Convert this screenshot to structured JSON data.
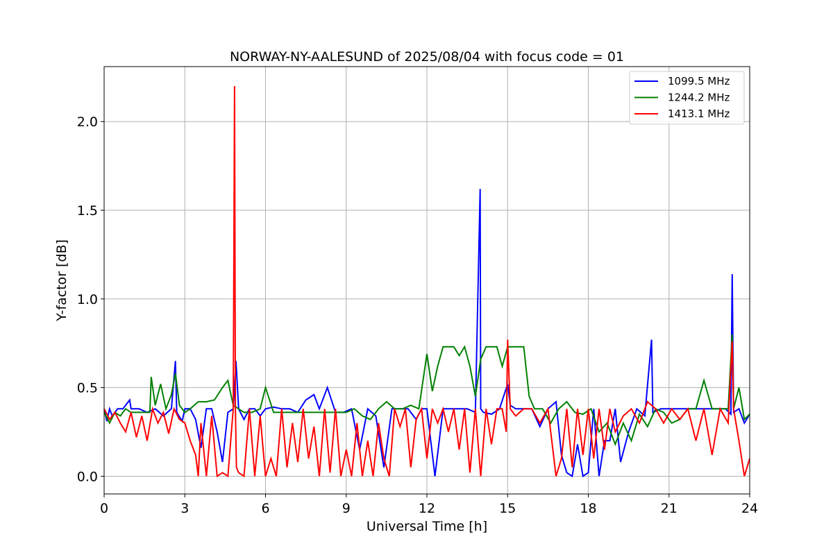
{
  "chart_data": {
    "type": "line",
    "title": "NORWAY-NY-AALESUND of 2025/08/04 with focus code = 01",
    "xlabel": "Universal Time [h]",
    "ylabel": "Y-factor [dB]",
    "xlim": [
      0,
      24
    ],
    "ylim": [
      -0.1,
      2.31
    ],
    "xticks": [
      0,
      3,
      6,
      9,
      12,
      15,
      18,
      21,
      24
    ],
    "xtick_labels": [
      "0",
      "3",
      "6",
      "9",
      "12",
      "15",
      "18",
      "21",
      "24"
    ],
    "yticks": [
      0.0,
      0.5,
      1.0,
      1.5,
      2.0
    ],
    "ytick_labels": [
      "0.0",
      "0.5",
      "1.0",
      "1.5",
      "2.0"
    ],
    "grid": true,
    "legend_position": "top-right",
    "series": [
      {
        "name": "1099.5 MHz",
        "color": "#0000ff",
        "x": [
          0.0,
          0.1,
          0.2,
          0.3,
          0.5,
          0.7,
          0.95,
          1.0,
          1.3,
          1.6,
          1.9,
          2.2,
          2.5,
          2.65,
          2.7,
          2.9,
          3.0,
          3.2,
          3.4,
          3.6,
          3.8,
          4.0,
          4.2,
          4.4,
          4.6,
          4.8,
          4.9,
          5.0,
          5.2,
          5.4,
          5.6,
          5.8,
          6.0,
          6.3,
          6.6,
          6.9,
          7.2,
          7.5,
          7.8,
          8.0,
          8.3,
          8.6,
          8.9,
          9.2,
          9.5,
          9.8,
          10.1,
          10.4,
          10.7,
          11.0,
          11.3,
          11.6,
          11.8,
          12.0,
          12.3,
          12.6,
          12.9,
          13.2,
          13.5,
          13.8,
          13.98,
          14.0,
          14.1,
          14.4,
          14.7,
          15.0,
          15.1,
          15.3,
          15.6,
          15.9,
          16.2,
          16.5,
          16.8,
          17.0,
          17.2,
          17.4,
          17.6,
          17.8,
          18.0,
          18.2,
          18.4,
          18.6,
          18.8,
          19.0,
          19.2,
          19.5,
          19.8,
          20.1,
          20.35,
          20.4,
          20.7,
          21.0,
          21.3,
          21.6,
          21.9,
          22.2,
          22.5,
          22.8,
          23.1,
          23.3,
          23.35,
          23.4,
          23.6,
          23.8,
          24.0
        ],
        "values": [
          0.38,
          0.31,
          0.38,
          0.34,
          0.38,
          0.38,
          0.43,
          0.38,
          0.38,
          0.36,
          0.38,
          0.34,
          0.38,
          0.65,
          0.36,
          0.31,
          0.38,
          0.38,
          0.32,
          0.16,
          0.38,
          0.38,
          0.25,
          0.08,
          0.36,
          0.38,
          0.65,
          0.38,
          0.32,
          0.38,
          0.38,
          0.34,
          0.38,
          0.39,
          0.38,
          0.38,
          0.36,
          0.43,
          0.46,
          0.38,
          0.5,
          0.36,
          0.36,
          0.38,
          0.15,
          0.38,
          0.34,
          0.05,
          0.38,
          0.38,
          0.38,
          0.32,
          0.38,
          0.38,
          0.0,
          0.38,
          0.38,
          0.38,
          0.38,
          0.36,
          1.62,
          0.38,
          0.36,
          0.35,
          0.38,
          0.52,
          0.4,
          0.38,
          0.38,
          0.38,
          0.28,
          0.38,
          0.42,
          0.12,
          0.02,
          0.0,
          0.18,
          0.0,
          0.02,
          0.38,
          0.0,
          0.2,
          0.2,
          0.38,
          0.08,
          0.25,
          0.38,
          0.34,
          0.77,
          0.36,
          0.38,
          0.38,
          0.38,
          0.38,
          0.38,
          0.38,
          0.38,
          0.38,
          0.38,
          0.35,
          1.14,
          0.36,
          0.38,
          0.3,
          0.35
        ]
      },
      {
        "name": "1244.2 MHz",
        "color": "#008000",
        "x": [
          0.0,
          0.2,
          0.4,
          0.6,
          0.8,
          1.0,
          1.2,
          1.5,
          1.7,
          1.75,
          1.9,
          2.1,
          2.3,
          2.5,
          2.65,
          2.8,
          3.0,
          3.2,
          3.5,
          3.8,
          4.1,
          4.4,
          4.6,
          4.8,
          5.0,
          5.2,
          5.5,
          5.8,
          6.0,
          6.3,
          6.6,
          6.9,
          7.2,
          7.5,
          7.8,
          8.1,
          8.4,
          8.7,
          9.0,
          9.3,
          9.6,
          9.9,
          10.2,
          10.5,
          10.8,
          11.1,
          11.4,
          11.7,
          12.0,
          12.2,
          12.4,
          12.6,
          12.8,
          13.0,
          13.2,
          13.4,
          13.6,
          13.8,
          14.0,
          14.2,
          14.4,
          14.6,
          14.8,
          15.0,
          15.2,
          15.4,
          15.6,
          15.8,
          16.0,
          16.3,
          16.6,
          16.9,
          17.2,
          17.5,
          17.8,
          18.1,
          18.4,
          18.7,
          19.0,
          19.3,
          19.6,
          19.9,
          20.2,
          20.5,
          20.8,
          21.1,
          21.4,
          21.7,
          22.0,
          22.3,
          22.6,
          22.9,
          23.2,
          23.35,
          23.4,
          23.6,
          23.8,
          24.0
        ],
        "values": [
          0.36,
          0.3,
          0.36,
          0.34,
          0.38,
          0.36,
          0.36,
          0.36,
          0.36,
          0.56,
          0.4,
          0.52,
          0.38,
          0.46,
          0.58,
          0.4,
          0.36,
          0.38,
          0.42,
          0.42,
          0.43,
          0.5,
          0.54,
          0.4,
          0.38,
          0.36,
          0.36,
          0.38,
          0.5,
          0.36,
          0.36,
          0.36,
          0.36,
          0.36,
          0.36,
          0.36,
          0.36,
          0.36,
          0.36,
          0.38,
          0.34,
          0.32,
          0.38,
          0.42,
          0.38,
          0.38,
          0.4,
          0.38,
          0.69,
          0.48,
          0.62,
          0.73,
          0.73,
          0.73,
          0.68,
          0.73,
          0.62,
          0.45,
          0.66,
          0.73,
          0.73,
          0.73,
          0.62,
          0.73,
          0.73,
          0.73,
          0.73,
          0.45,
          0.38,
          0.38,
          0.3,
          0.38,
          0.42,
          0.36,
          0.35,
          0.38,
          0.25,
          0.3,
          0.18,
          0.3,
          0.2,
          0.35,
          0.28,
          0.38,
          0.36,
          0.3,
          0.32,
          0.38,
          0.38,
          0.54,
          0.38,
          0.38,
          0.38,
          0.8,
          0.38,
          0.5,
          0.32,
          0.35
        ]
      },
      {
        "name": "1413.1 MHz",
        "color": "#ff0000",
        "x": [
          0.0,
          0.2,
          0.4,
          0.6,
          0.8,
          1.0,
          1.2,
          1.4,
          1.6,
          1.8,
          2.0,
          2.2,
          2.4,
          2.6,
          2.8,
          3.0,
          3.2,
          3.4,
          3.5,
          3.6,
          3.8,
          4.0,
          4.2,
          4.4,
          4.6,
          4.8,
          4.85,
          4.88,
          4.92,
          5.0,
          5.2,
          5.4,
          5.6,
          5.8,
          6.0,
          6.2,
          6.4,
          6.6,
          6.8,
          7.0,
          7.2,
          7.4,
          7.6,
          7.8,
          8.0,
          8.2,
          8.4,
          8.6,
          8.8,
          9.0,
          9.2,
          9.4,
          9.6,
          9.8,
          10.0,
          10.2,
          10.4,
          10.6,
          10.8,
          11.0,
          11.2,
          11.4,
          11.6,
          11.8,
          12.0,
          12.2,
          12.4,
          12.6,
          12.8,
          13.0,
          13.2,
          13.4,
          13.6,
          13.8,
          14.0,
          14.2,
          14.4,
          14.6,
          14.8,
          14.95,
          15.0,
          15.1,
          15.3,
          15.6,
          15.9,
          16.2,
          16.5,
          16.8,
          17.0,
          17.2,
          17.4,
          17.6,
          17.8,
          18.0,
          18.2,
          18.4,
          18.6,
          18.8,
          19.0,
          19.3,
          19.6,
          19.9,
          20.2,
          20.5,
          20.8,
          21.1,
          21.4,
          21.7,
          22.0,
          22.3,
          22.6,
          22.9,
          23.2,
          23.35,
          23.4,
          23.6,
          23.8,
          24.0
        ],
        "values": [
          0.38,
          0.32,
          0.36,
          0.3,
          0.25,
          0.36,
          0.22,
          0.34,
          0.2,
          0.38,
          0.3,
          0.36,
          0.24,
          0.38,
          0.32,
          0.3,
          0.2,
          0.12,
          0.0,
          0.3,
          0.0,
          0.34,
          0.0,
          0.02,
          0.0,
          0.38,
          2.2,
          0.38,
          0.05,
          0.02,
          0.0,
          0.38,
          0.0,
          0.34,
          0.0,
          0.1,
          0.0,
          0.38,
          0.05,
          0.3,
          0.08,
          0.38,
          0.1,
          0.28,
          0.0,
          0.38,
          0.02,
          0.38,
          0.0,
          0.15,
          0.0,
          0.3,
          0.0,
          0.2,
          0.0,
          0.3,
          0.1,
          0.0,
          0.38,
          0.28,
          0.38,
          0.05,
          0.32,
          0.38,
          0.1,
          0.38,
          0.3,
          0.38,
          0.25,
          0.38,
          0.15,
          0.38,
          0.02,
          0.38,
          0.0,
          0.38,
          0.18,
          0.38,
          0.38,
          0.25,
          0.77,
          0.38,
          0.34,
          0.38,
          0.38,
          0.3,
          0.38,
          0.0,
          0.1,
          0.38,
          0.05,
          0.38,
          0.12,
          0.38,
          0.1,
          0.38,
          0.15,
          0.38,
          0.25,
          0.34,
          0.38,
          0.3,
          0.42,
          0.38,
          0.3,
          0.38,
          0.32,
          0.38,
          0.2,
          0.38,
          0.12,
          0.38,
          0.3,
          0.76,
          0.38,
          0.2,
          0.0,
          0.1
        ]
      }
    ]
  }
}
